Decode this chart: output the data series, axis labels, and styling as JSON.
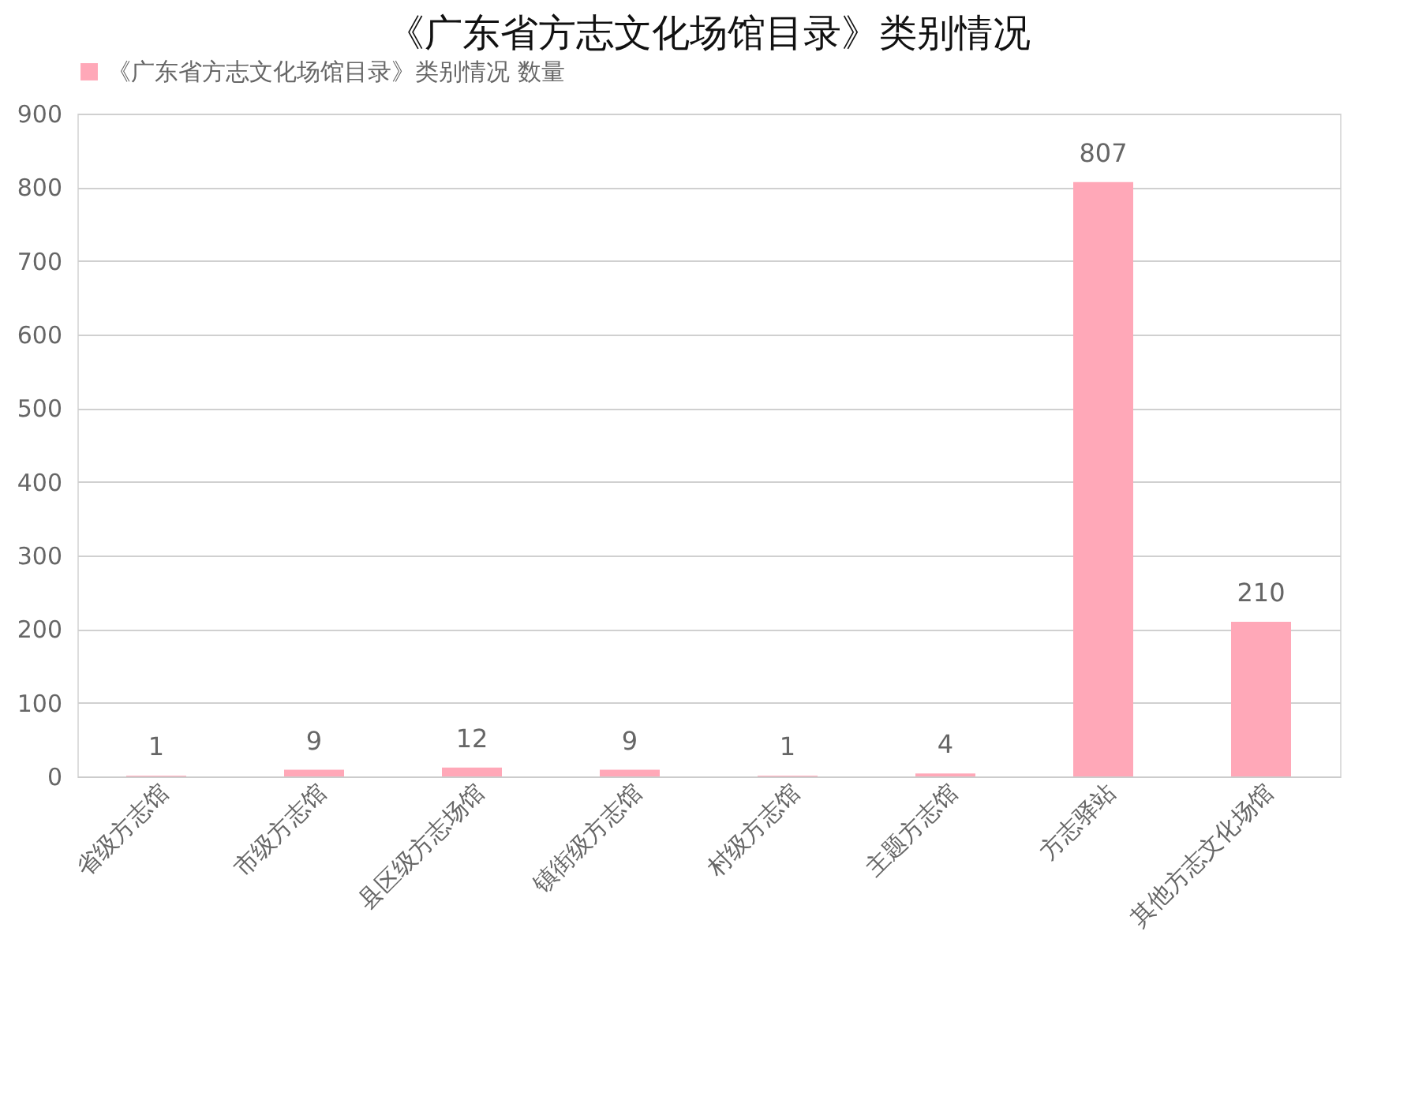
{
  "chart_data": {
    "type": "bar",
    "title": "《广东省方志文化场馆目录》类别情况",
    "categories": [
      "省级方志馆",
      "市级方志馆",
      "县区级方志场馆",
      "镇街级方志馆",
      "村级方志馆",
      "主题方志馆",
      "方志驿站",
      "其他方志文化场馆"
    ],
    "series": [
      {
        "name": "《广东省方志文化场馆目录》类别情况 数量",
        "color": "#ffa8b8",
        "values": [
          1,
          9,
          12,
          9,
          1,
          4,
          807,
          210
        ]
      }
    ],
    "ylim": [
      0,
      900
    ],
    "yticks": [
      0,
      100,
      200,
      300,
      400,
      500,
      600,
      700,
      800,
      900
    ],
    "grid": "y",
    "legend": "top",
    "data_labels": true
  }
}
